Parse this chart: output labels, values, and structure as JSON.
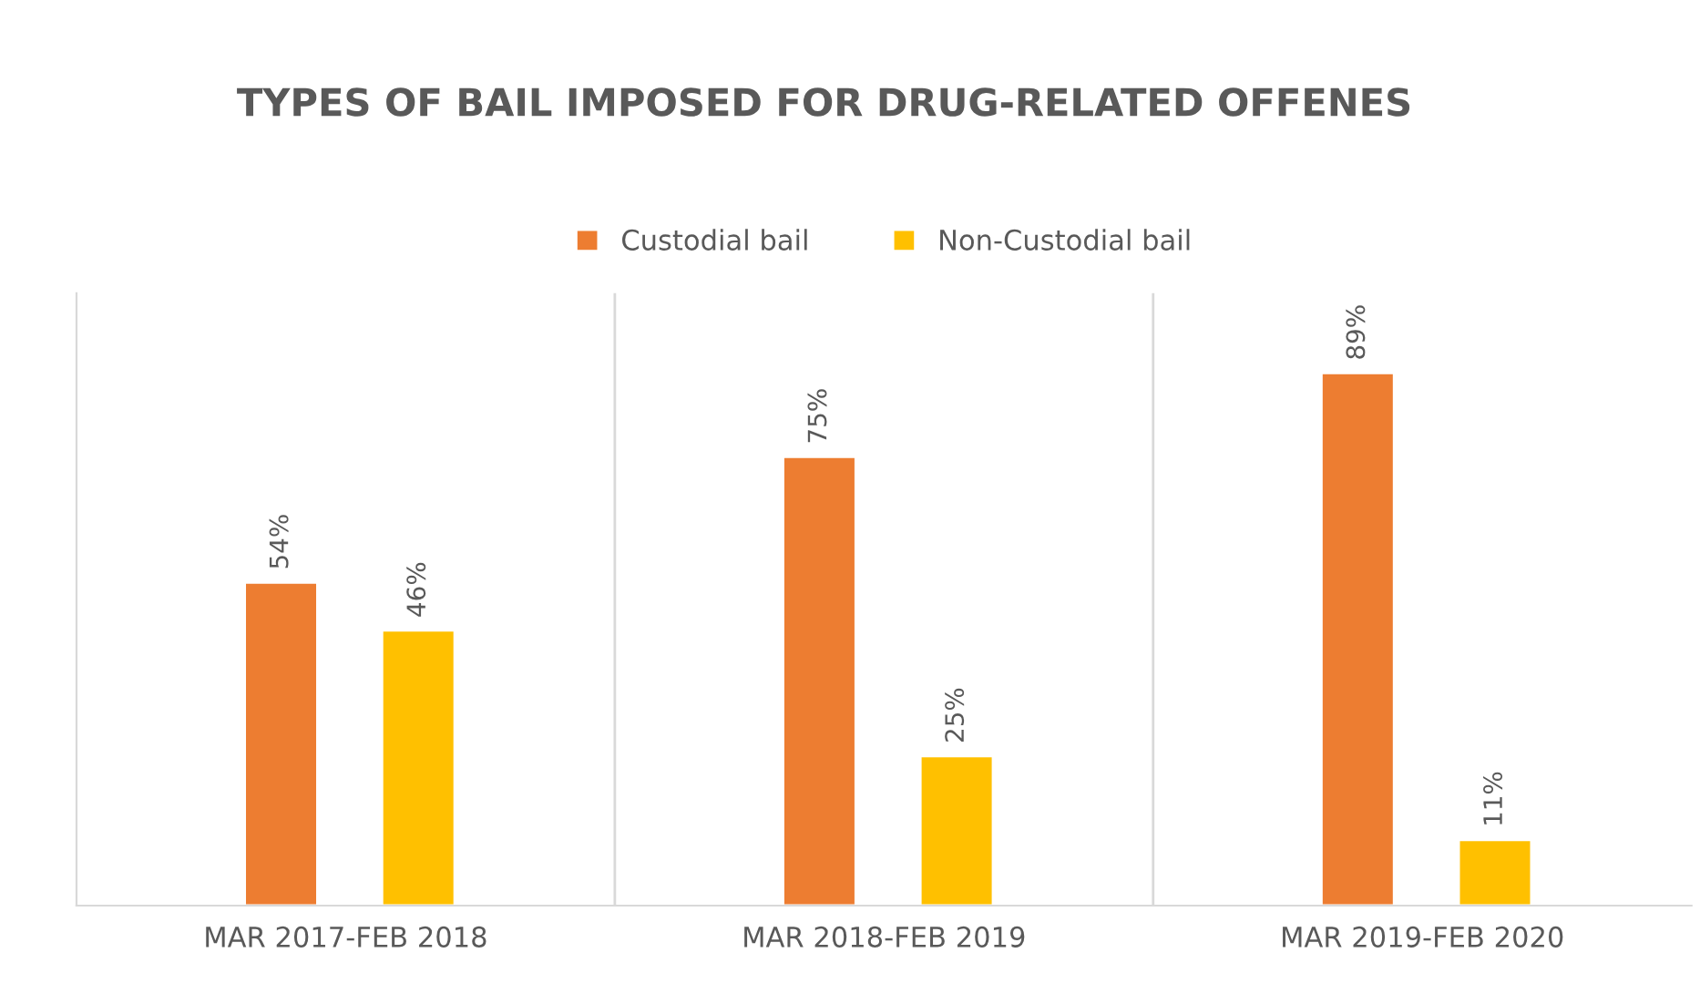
{
  "chart_data": {
    "type": "bar",
    "title": "TYPES OF BAIL IMPOSED FOR DRUG-RELATED OFFENES",
    "categories": [
      "MAR 2017-FEB 2018",
      "MAR 2018-FEB 2019",
      "MAR 2019-FEB 2020"
    ],
    "series": [
      {
        "name": "Custodial bail",
        "color": "#ed7d31",
        "values": [
          54,
          75,
          89
        ],
        "value_labels": [
          "54%",
          "75%",
          "89%"
        ]
      },
      {
        "name": "Non-Custodial bail",
        "color": "#ffc000",
        "values": [
          46,
          25,
          11
        ],
        "value_labels": [
          "46%",
          "25%",
          "11%"
        ]
      }
    ],
    "legend": "top",
    "grid": "x"
  }
}
